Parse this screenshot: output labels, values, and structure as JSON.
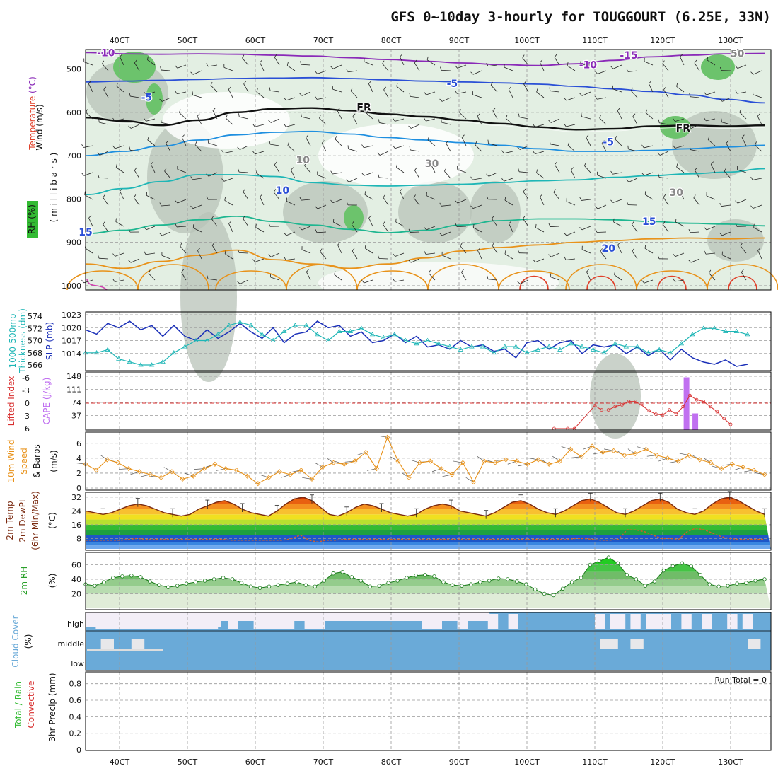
{
  "title": "GFS 0~10day 3-hourly for TOUGGOURT (6.25E, 33N)",
  "colors": {
    "temp_contour": "#2a6fd6",
    "rh_dark": "#6cc36c",
    "rh_grey": "#b8c3b8",
    "rh_light": "#e3efe3",
    "slp": "#1a2fb8",
    "thickness": "#1eb6b6",
    "lifted": "#d83030",
    "cape": "#c070f0",
    "wind": "#e8921a",
    "temp2m": "#7a2a10",
    "dewpt": "#d0602a",
    "rh2m": "#2aa02a",
    "cloud": "#6aaad8",
    "cloud_clear": "#f3eef7"
  },
  "x_ticks": [
    "40CT",
    "50CT",
    "60CT",
    "70CT",
    "80CT",
    "90CT",
    "100CT",
    "110CT",
    "120CT",
    "130CT"
  ],
  "chart_data": [
    {
      "type": "heatmap",
      "panel": "upper-air",
      "ylabel_parts": [
        "Wind (m/s)",
        "Temperature (°C)",
        "RH (%)"
      ],
      "ylabel_unit": "( m i l l i b a r s )",
      "y_ticks": [
        500,
        600,
        700,
        800,
        900,
        1000
      ],
      "ylim": [
        455,
        1010
      ],
      "contour_labels": [
        {
          "text": "-10",
          "x": 38,
          "p": 462
        },
        {
          "text": "-10",
          "x": 109,
          "p": 490
        },
        {
          "text": "-15",
          "x": 115,
          "p": 468
        },
        {
          "text": "-5",
          "x": 44,
          "p": 565
        },
        {
          "text": "-5",
          "x": 89,
          "p": 533
        },
        {
          "text": "-5",
          "x": 112,
          "p": 668
        },
        {
          "text": "10",
          "x": 64,
          "p": 780
        },
        {
          "text": "15",
          "x": 35,
          "p": 876
        },
        {
          "text": "15",
          "x": 118,
          "p": 852
        },
        {
          "text": "20",
          "x": 112,
          "p": 914
        },
        {
          "text": "FR",
          "x": 76,
          "p": 588
        },
        {
          "text": "FR",
          "x": 123,
          "p": 636
        },
        {
          "text": "10",
          "x": 67,
          "p": 710
        },
        {
          "text": "30",
          "x": 86,
          "p": 718
        },
        {
          "text": "30",
          "x": 122,
          "p": 785
        },
        {
          "text": "50",
          "x": 131,
          "p": 464
        }
      ],
      "isotherms": [
        {
          "label": "-10",
          "color": "#8a2ab8",
          "y": [
            462,
            465,
            466,
            465,
            466,
            468,
            470,
            474,
            478,
            482,
            486,
            490,
            492,
            488,
            480,
            472,
            468,
            465,
            464
          ]
        },
        {
          "label": "-5",
          "color": "#2a4fd6",
          "y": [
            530,
            528,
            526,
            524,
            522,
            521,
            520,
            522,
            525,
            528,
            530,
            532,
            535,
            540,
            546,
            552,
            560,
            570,
            578
          ]
        },
        {
          "label": "0",
          "color": "#111111",
          "y": [
            612,
            620,
            630,
            618,
            600,
            592,
            590,
            596,
            604,
            610,
            618,
            626,
            634,
            640,
            638,
            632,
            630,
            632,
            630
          ]
        },
        {
          "label": "5",
          "color": "#1e8fe0",
          "y": [
            700,
            690,
            678,
            664,
            652,
            646,
            644,
            650,
            658,
            664,
            670,
            676,
            684,
            690,
            690,
            688,
            684,
            680,
            676
          ]
        },
        {
          "label": "10",
          "color": "#1eb6b6",
          "y": [
            790,
            776,
            760,
            744,
            744,
            748,
            762,
            768,
            770,
            768,
            766,
            762,
            758,
            756,
            750,
            746,
            742,
            738,
            730
          ]
        },
        {
          "label": "15",
          "color": "#1eb690",
          "y": [
            880,
            872,
            860,
            848,
            840,
            852,
            860,
            870,
            878,
            872,
            860,
            850,
            846,
            846,
            848,
            852,
            856,
            858,
            862
          ]
        },
        {
          "label": "20",
          "color": "#e8921a",
          "y": [
            950,
            960,
            944,
            930,
            918,
            940,
            950,
            960,
            950,
            936,
            920,
            912,
            906,
            900,
            896,
            892,
            890,
            892,
            890
          ]
        }
      ]
    },
    {
      "type": "line",
      "panel": "slp-thickness",
      "ylabel_parts": [
        "1000-500mb",
        "Thickness (dm)",
        "SLP (mb)"
      ],
      "left_ticks": [
        566,
        568,
        570,
        572,
        574
      ],
      "right_ticks": [
        1014,
        1017,
        1020,
        1023
      ],
      "series": [
        {
          "values": [
            1019.5,
            1018.5,
            1021,
            1020,
            1021.5,
            1019.5,
            1020.5,
            1018,
            1020.5,
            1018,
            1017,
            1019.5,
            1017.5,
            1019,
            1021,
            1019,
            1017.5,
            1020,
            1016.5,
            1018.5,
            1019,
            1021.5,
            1020,
            1020.5,
            1018,
            1019,
            1016.5,
            1017,
            1018.5,
            1016.5,
            1018,
            1015.5,
            1016,
            1015,
            1017,
            1015.5,
            1016,
            1014.5,
            1015,
            1013,
            1016.5,
            1017,
            1015,
            1016.5,
            1017,
            1014,
            1016,
            1015.5,
            1016,
            1014,
            1015.5,
            1013.5,
            1015,
            1012.5,
            1015,
            1013,
            1012,
            1011.5,
            1012.5,
            1011,
            1011.5
          ]
        },
        {
          "values": [
            568,
            568,
            568.5,
            567,
            566.5,
            566,
            566,
            566.5,
            568,
            569,
            570,
            570,
            571,
            572.5,
            573,
            572.5,
            571,
            570,
            571.5,
            572.5,
            572.5,
            571,
            570,
            571.5,
            571.5,
            572,
            571,
            570.5,
            571,
            570,
            569.5,
            570,
            569.5,
            569,
            568.5,
            569,
            569,
            568,
            569,
            569,
            568,
            568.5,
            569,
            568.5,
            569.5,
            569,
            568.5,
            568,
            569.5,
            569,
            569,
            568,
            568.5,
            568,
            569.5,
            571,
            572,
            572,
            571.5,
            571.5,
            571
          ]
        }
      ]
    },
    {
      "type": "bar",
      "panel": "cape-lifted",
      "ylabel_parts": [
        "Lifted Index",
        "CAPE (J/kg)"
      ],
      "left_ticks": [
        "-6",
        "-3",
        "0",
        "3",
        "6"
      ],
      "right_ticks": [
        37,
        74,
        111,
        148
      ],
      "cape_bars": [
        {
          "x": 123.5,
          "value": 145
        },
        {
          "x": 124.8,
          "value": 43
        }
      ],
      "lifted_x": [
        104,
        106,
        107,
        110,
        111,
        112,
        113,
        114,
        115,
        116,
        117,
        118,
        119,
        120,
        121,
        122,
        123,
        124,
        125,
        126,
        127,
        128,
        129,
        130
      ],
      "lifted_values": [
        6,
        6,
        6,
        0.6,
        1.6,
        1.6,
        0.8,
        0.4,
        -0.4,
        -0.4,
        0.6,
        1.8,
        2.6,
        2.8,
        1.6,
        2.6,
        0.8,
        -1.8,
        -0.8,
        -0.4,
        0.8,
        2.0,
        3.6,
        5.0
      ]
    },
    {
      "type": "line",
      "panel": "wind10m",
      "ylabel_parts": [
        "10m Wind",
        "Speed",
        "& Barbs",
        "(m/s)"
      ],
      "y_ticks": [
        0,
        2,
        4,
        6
      ],
      "series": [
        {
          "values": [
            3.2,
            2.4,
            3.8,
            3.4,
            2.6,
            2.2,
            1.8,
            1.4,
            2.2,
            1.2,
            1.6,
            2.6,
            3.2,
            2.6,
            2.4,
            1.6,
            0.6,
            1.4,
            2.2,
            1.8,
            2.4,
            1.2,
            2.8,
            3.4,
            3.2,
            3.6,
            4.8,
            2.6,
            6.8,
            3.6,
            1.4,
            3.4,
            3.6,
            2.6,
            1.8,
            3.4,
            0.8,
            3.6,
            3.4,
            3.8,
            3.6,
            3.2,
            3.8,
            3.2,
            3.6,
            5.2,
            4.2,
            5.6,
            4.8,
            5.0,
            4.4,
            4.6,
            5.2,
            4.4,
            4.0,
            3.6,
            4.4,
            3.8,
            3.4,
            2.6,
            3.2,
            2.8,
            2.4,
            1.8
          ]
        }
      ]
    },
    {
      "type": "area",
      "panel": "temp2m",
      "ylabel_parts": [
        "2m Temp",
        "2m DewPt",
        "(6hr Min/Max)",
        "(°C)"
      ],
      "y_ticks": [
        8,
        16,
        24,
        32
      ],
      "temp_values": [
        24,
        23,
        22,
        23,
        25,
        27,
        28,
        27,
        25,
        23,
        22,
        21,
        22,
        25,
        27,
        29,
        30,
        28,
        25,
        23,
        22,
        21,
        24,
        28,
        31,
        32,
        30,
        26,
        22,
        21,
        23,
        26,
        28,
        27,
        25,
        23,
        22,
        21,
        22,
        25,
        27,
        28,
        27,
        24,
        23,
        22,
        21,
        23,
        26,
        29,
        30,
        28,
        25,
        23,
        22,
        24,
        27,
        30,
        31,
        29,
        26,
        23,
        22,
        24,
        27,
        30,
        31,
        29,
        25,
        23,
        22,
        24,
        28,
        31,
        32,
        30,
        27,
        24,
        22
      ],
      "dewpt_values": [
        7,
        7,
        7,
        7,
        7,
        7.5,
        8,
        7.5,
        7.5,
        7.5,
        7.5,
        7.5,
        7.5,
        7.5,
        7.5,
        7.5,
        7.5,
        7,
        7,
        7,
        7,
        7,
        7,
        7,
        8,
        10,
        7,
        6,
        7,
        7,
        7.5,
        7.5,
        7.5,
        7.5,
        7.5,
        7.5,
        7.5,
        7.5,
        7.5,
        7.5,
        7.5,
        7.5,
        7.5,
        7.5,
        7.5,
        7.5,
        7.5,
        7.5,
        7.5,
        7.5,
        7.5,
        7.5,
        7.5,
        7.5,
        7.5,
        7.5,
        7.5,
        8,
        8,
        7.5,
        7,
        7,
        7.5,
        13,
        13,
        12,
        10,
        8,
        8,
        7.5,
        12,
        14,
        13,
        11,
        9,
        8,
        7.5,
        7.5,
        7.5,
        7.5
      ]
    },
    {
      "type": "area",
      "panel": "rh2m",
      "ylabel_parts": [
        "2m RH",
        "(%)"
      ],
      "y_ticks": [
        20,
        40,
        60
      ],
      "values": [
        33,
        31,
        36,
        42,
        44,
        45,
        43,
        37,
        32,
        29,
        31,
        34,
        36,
        38,
        40,
        42,
        40,
        35,
        30,
        28,
        30,
        32,
        34,
        36,
        32,
        30,
        38,
        48,
        50,
        43,
        38,
        30,
        31,
        35,
        38,
        42,
        45,
        46,
        44,
        36,
        32,
        31,
        33,
        36,
        38,
        41,
        40,
        37,
        33,
        26,
        20,
        18,
        27,
        36,
        42,
        60,
        65,
        70,
        62,
        46,
        40,
        31,
        37,
        52,
        58,
        62,
        58,
        46,
        33,
        30,
        31,
        34,
        35,
        38,
        40
      ]
    },
    {
      "type": "bar",
      "panel": "cloud",
      "ylabel_parts": [
        "Cloud Cover",
        "(%)"
      ],
      "row_labels": [
        "high",
        "middle",
        "low"
      ],
      "high_gaps": [
        [
          2,
          26
        ],
        [
          28,
          30
        ],
        [
          33,
          38
        ],
        [
          38,
          41
        ],
        [
          43,
          47
        ],
        [
          66,
          70
        ],
        [
          73,
          75
        ],
        [
          79,
          81
        ],
        [
          83,
          85
        ],
        [
          100,
          102
        ],
        [
          103,
          106
        ],
        [
          107,
          109
        ],
        [
          110,
          113
        ],
        [
          113,
          115
        ],
        [
          117,
          119
        ],
        [
          121,
          123
        ],
        [
          126,
          128
        ],
        [
          129,
          131
        ]
      ],
      "middle_gaps": [
        [
          3,
          5
        ],
        [
          9,
          11
        ],
        [
          101,
          104
        ],
        [
          107,
          109
        ],
        [
          130,
          132
        ]
      ]
    },
    {
      "type": "line",
      "panel": "precip",
      "ylabel_parts": [
        "Total / Rain",
        "Convective",
        "3hr Precip (mm)"
      ],
      "y_ticks": [
        "0",
        "0.2",
        "0.4",
        "0.6",
        "0.8"
      ],
      "run_total": "Run Total = 0",
      "values": []
    }
  ]
}
